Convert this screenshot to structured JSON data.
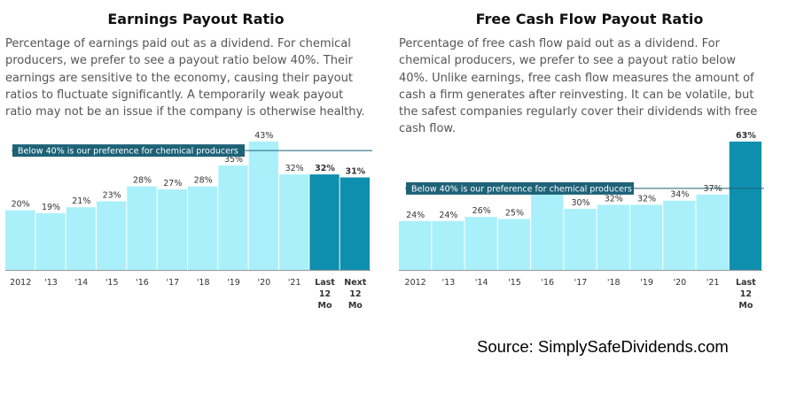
{
  "source": "Source: SimplySafeDividends.com",
  "colors": {
    "bar_light": "#aaf0fb",
    "bar_dark": "#0f8fae",
    "pref_box": "#1e6278",
    "pref_line": "#1e6278",
    "axis": "#999999",
    "label": "#333333"
  },
  "chart_data": [
    {
      "type": "bar",
      "title": "Earnings Payout Ratio",
      "description": "Percentage of earnings paid out as a dividend. For chemical producers, we prefer to see a payout ratio below 40%. Their earnings are sensitive to the economy, causing their payout ratios to fluctuate significantly. A temporarily weak payout ratio may not be an issue if the company is otherwise healthy.",
      "categories": [
        "2012",
        "'13",
        "'14",
        "'15",
        "'16",
        "'17",
        "'18",
        "'19",
        "'20",
        "'21",
        "Last 12 Mo",
        "Next 12 Mo"
      ],
      "values": [
        20,
        19,
        21,
        23,
        28,
        27,
        28,
        35,
        43,
        32,
        32,
        31
      ],
      "value_labels": [
        "20%",
        "19%",
        "21%",
        "23%",
        "28%",
        "27%",
        "28%",
        "35%",
        "43%",
        "32%",
        "32%",
        "31%"
      ],
      "highlight": [
        false,
        false,
        false,
        false,
        false,
        false,
        false,
        false,
        false,
        false,
        true,
        true
      ],
      "reference_line": {
        "value": 40,
        "label": "Below 40% is our preference for chemical producers"
      },
      "ylim": [
        0,
        43
      ]
    },
    {
      "type": "bar",
      "title": "Free Cash Flow Payout Ratio",
      "description": "Percentage of free cash flow paid out as a dividend. For chemical producers, we prefer to see a payout ratio below 40%. Unlike earnings, free cash flow measures the amount of cash a firm generates after reinvesting. It can be volatile, but the safest companies regularly cover their dividends with free cash flow.",
      "categories": [
        "2012",
        "'13",
        "'14",
        "'15",
        "'16",
        "'17",
        "'18",
        "'19",
        "'20",
        "'21",
        "Last 12 Mo"
      ],
      "values": [
        24,
        24,
        26,
        25,
        42,
        30,
        32,
        32,
        34,
        37,
        63
      ],
      "value_labels": [
        "24%",
        "24%",
        "26%",
        "25%",
        "",
        "30%",
        "32%",
        "32%",
        "34%",
        "37%",
        "63%"
      ],
      "highlight": [
        false,
        false,
        false,
        false,
        false,
        false,
        false,
        false,
        false,
        false,
        true
      ],
      "reference_line": {
        "value": 40,
        "label": "Below 40% is our preference for chemical producers"
      },
      "ylim": [
        0,
        63
      ]
    }
  ]
}
